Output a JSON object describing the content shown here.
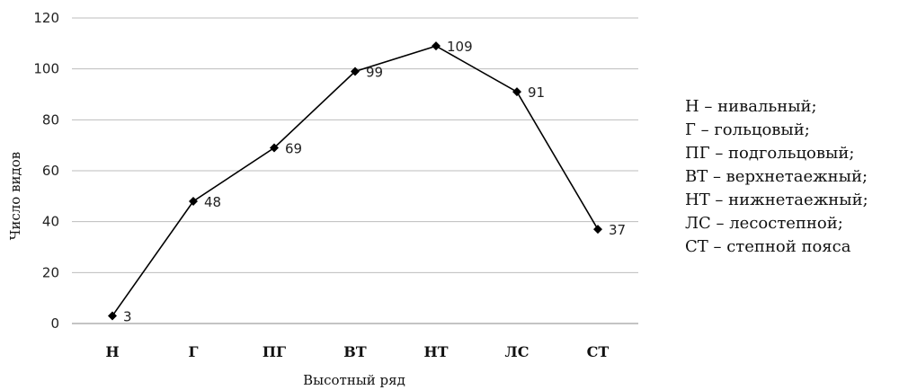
{
  "chart_data": {
    "type": "line",
    "categories": [
      "Н",
      "Г",
      "ПГ",
      "ВТ",
      "НТ",
      "ЛС",
      "СТ"
    ],
    "values": [
      3,
      48,
      69,
      99,
      109,
      91,
      37
    ],
    "xlabel": "Высотный ряд",
    "ylabel": "Число видов",
    "ylim": [
      0,
      120
    ],
    "yticks": [
      0,
      20,
      40,
      60,
      80,
      100,
      120
    ],
    "grid": "horizontal",
    "marker": "diamond",
    "line_color": "#000000",
    "grid_color": "#bdbdbd"
  },
  "legend": [
    "Н – нивальный;",
    "Г – гольцовый;",
    "ПГ – подгольцовый;",
    "ВТ – верхнетаежный;",
    "НТ – нижнетаежный;",
    "ЛС – лесостепной;",
    "СТ – степной пояса"
  ]
}
